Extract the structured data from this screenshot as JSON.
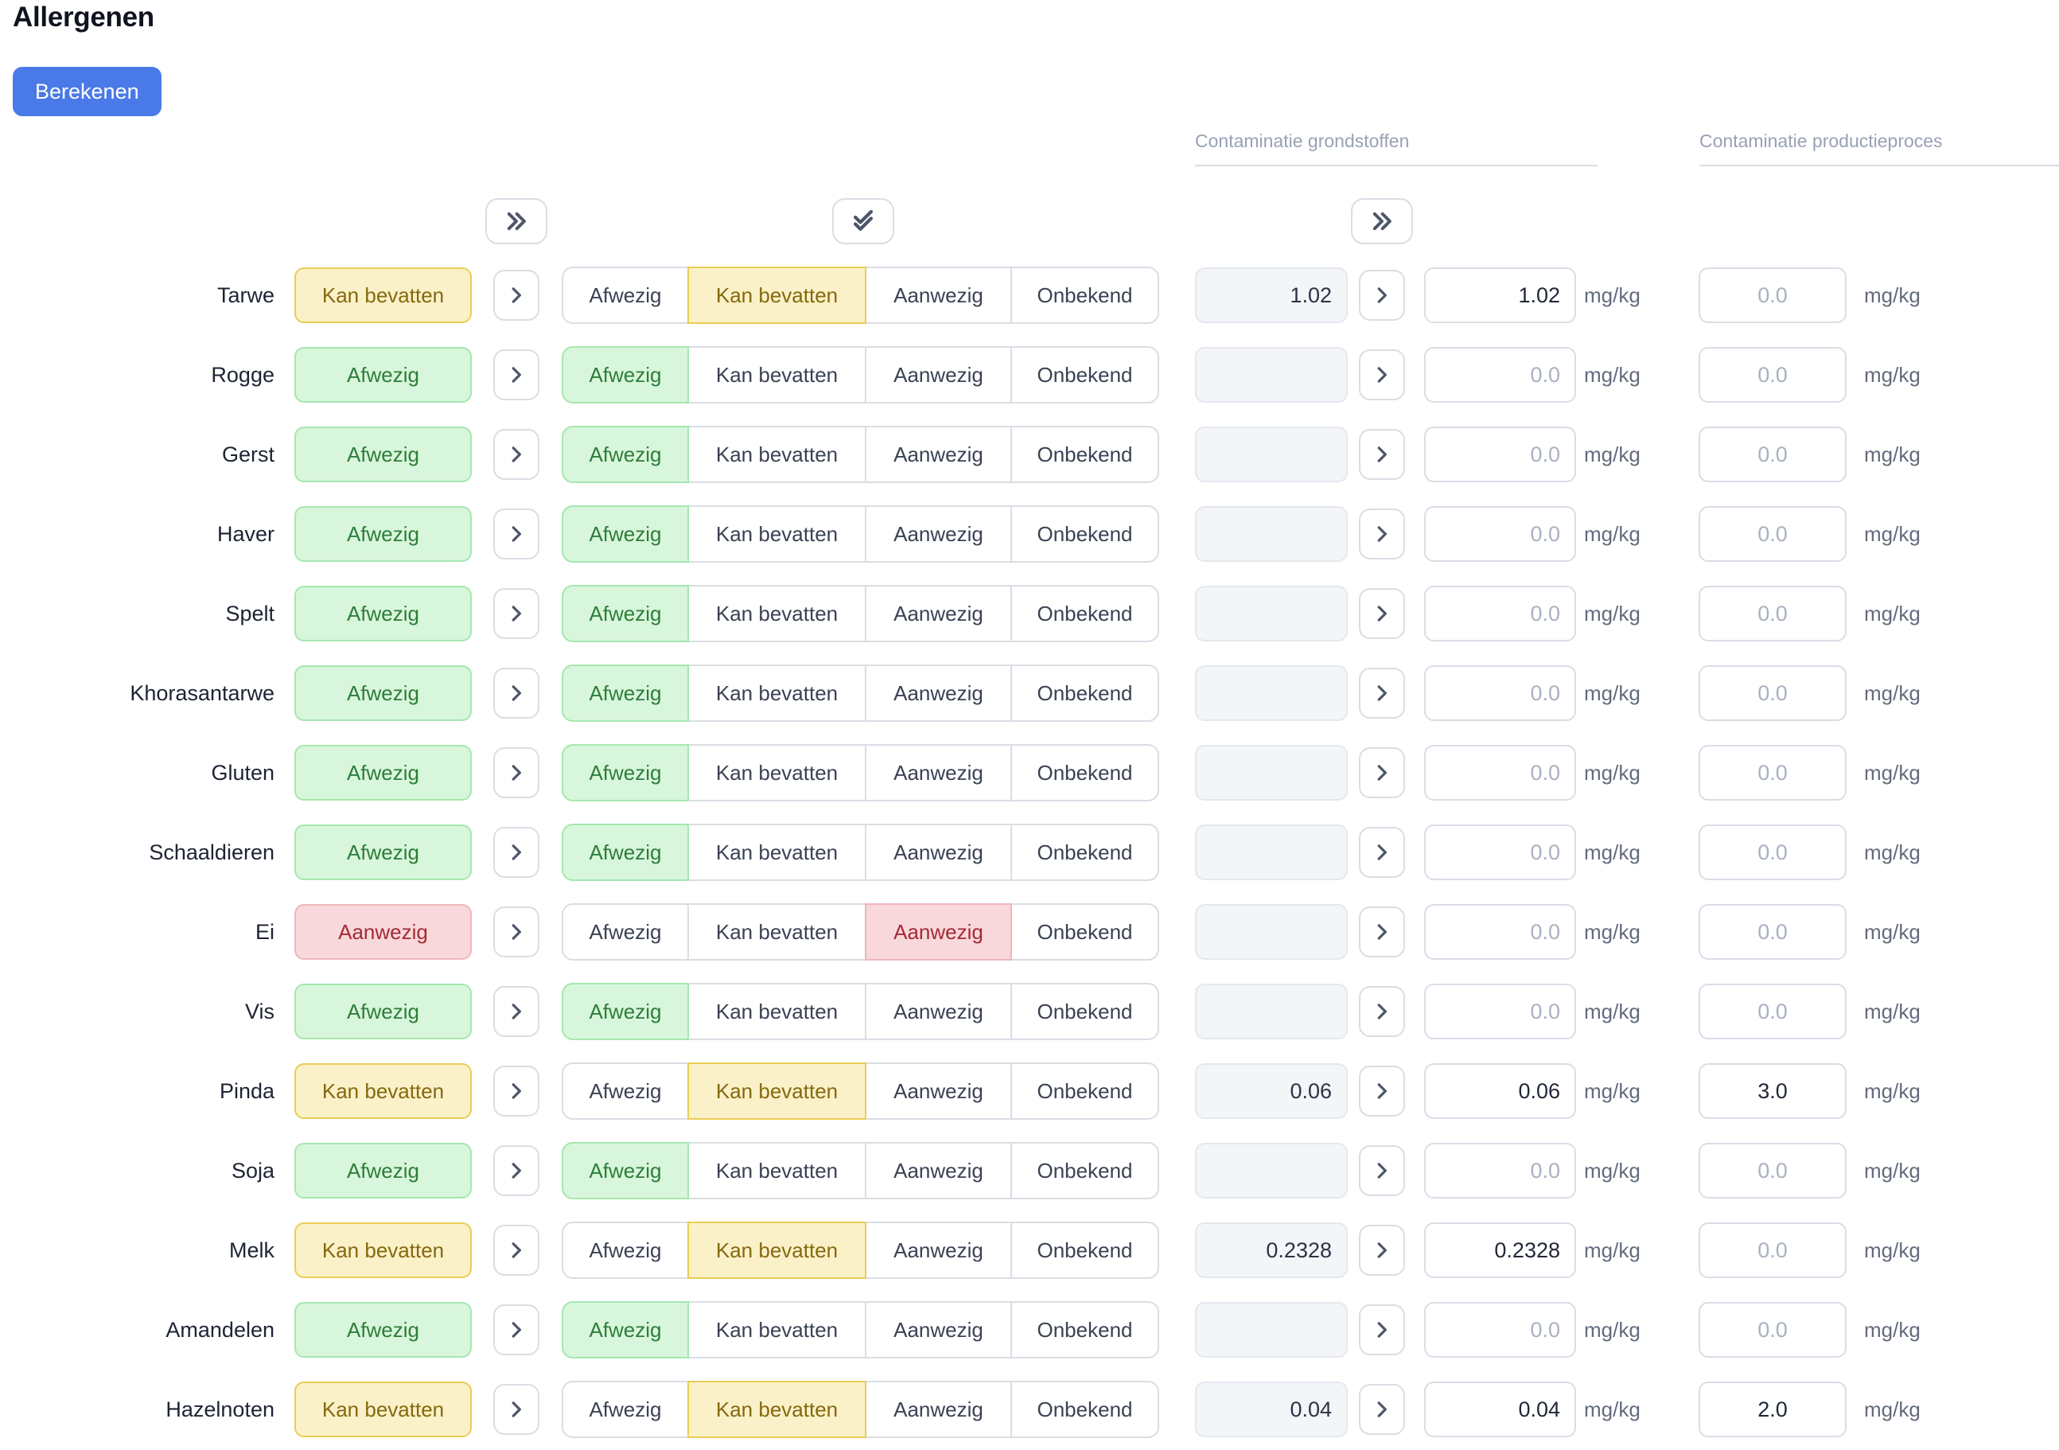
{
  "page_title": "Allergenen",
  "toolbar": {
    "calculate_label": "Berekenen"
  },
  "column_headers": {
    "grondstoffen": "Contaminatie grondstoffen",
    "productieproces": "Contaminatie productieproces"
  },
  "unit_label": "mg/kg",
  "status_options": [
    "Afwezig",
    "Kan bevatten",
    "Aanwezig",
    "Onbekend"
  ],
  "status_class_map": {
    "Afwezig": "green",
    "Kan bevatten": "yellow",
    "Aanwezig": "red",
    "Onbekend": "neutral"
  },
  "icons": {
    "bulk_copy_icon": "chevrons-right",
    "bulk_confirm_icon": "double-check",
    "row_copy_icon": "chevron-right"
  },
  "colors": {
    "primary": "#4a79e8",
    "green_bg": "#d8f6db",
    "green_border": "#a6e7ae",
    "green_text": "#2e7d3a",
    "yellow_bg": "#fbf1c8",
    "yellow_border": "#e9cd55",
    "yellow_text": "#84690f",
    "red_bg": "#f8d8da",
    "red_border": "#efb6ba",
    "red_text": "#a42a35"
  },
  "rows": [
    {
      "label": "Tarwe",
      "status": "Kan bevatten",
      "raw": "1.02",
      "value": "1.02",
      "value_placeholder": false,
      "process": "0.0",
      "process_placeholder": true
    },
    {
      "label": "Rogge",
      "status": "Afwezig",
      "raw": "",
      "value": "0.0",
      "value_placeholder": true,
      "process": "0.0",
      "process_placeholder": true
    },
    {
      "label": "Gerst",
      "status": "Afwezig",
      "raw": "",
      "value": "0.0",
      "value_placeholder": true,
      "process": "0.0",
      "process_placeholder": true
    },
    {
      "label": "Haver",
      "status": "Afwezig",
      "raw": "",
      "value": "0.0",
      "value_placeholder": true,
      "process": "0.0",
      "process_placeholder": true
    },
    {
      "label": "Spelt",
      "status": "Afwezig",
      "raw": "",
      "value": "0.0",
      "value_placeholder": true,
      "process": "0.0",
      "process_placeholder": true
    },
    {
      "label": "Khorasantarwe",
      "status": "Afwezig",
      "raw": "",
      "value": "0.0",
      "value_placeholder": true,
      "process": "0.0",
      "process_placeholder": true
    },
    {
      "label": "Gluten",
      "status": "Afwezig",
      "raw": "",
      "value": "0.0",
      "value_placeholder": true,
      "process": "0.0",
      "process_placeholder": true
    },
    {
      "label": "Schaaldieren",
      "status": "Afwezig",
      "raw": "",
      "value": "0.0",
      "value_placeholder": true,
      "process": "0.0",
      "process_placeholder": true
    },
    {
      "label": "Ei",
      "status": "Aanwezig",
      "raw": "",
      "value": "0.0",
      "value_placeholder": true,
      "process": "0.0",
      "process_placeholder": true
    },
    {
      "label": "Vis",
      "status": "Afwezig",
      "raw": "",
      "value": "0.0",
      "value_placeholder": true,
      "process": "0.0",
      "process_placeholder": true
    },
    {
      "label": "Pinda",
      "status": "Kan bevatten",
      "raw": "0.06",
      "value": "0.06",
      "value_placeholder": false,
      "process": "3.0",
      "process_placeholder": false
    },
    {
      "label": "Soja",
      "status": "Afwezig",
      "raw": "",
      "value": "0.0",
      "value_placeholder": true,
      "process": "0.0",
      "process_placeholder": true
    },
    {
      "label": "Melk",
      "status": "Kan bevatten",
      "raw": "0.2328",
      "value": "0.2328",
      "value_placeholder": false,
      "process": "0.0",
      "process_placeholder": true
    },
    {
      "label": "Amandelen",
      "status": "Afwezig",
      "raw": "",
      "value": "0.0",
      "value_placeholder": true,
      "process": "0.0",
      "process_placeholder": true
    },
    {
      "label": "Hazelnoten",
      "status": "Kan bevatten",
      "raw": "0.04",
      "value": "0.04",
      "value_placeholder": false,
      "process": "2.0",
      "process_placeholder": false
    }
  ]
}
